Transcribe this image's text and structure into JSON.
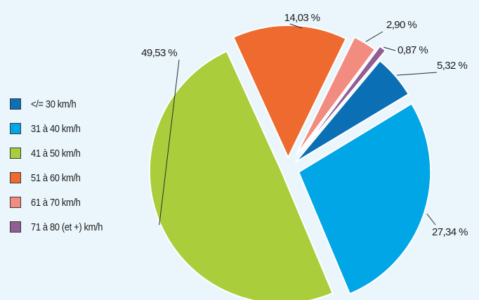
{
  "chart_data": {
    "type": "pie",
    "title": "",
    "categories": [
      "</= 30 km/h",
      "31 à 40 km/h",
      "41 à 50 km/h",
      "51 à 60 km/h",
      "61 à 70 km/h",
      "71 à 80 (et +) km/h"
    ],
    "values": [
      5.32,
      27.34,
      49.53,
      14.03,
      2.9,
      0.87
    ],
    "value_labels": [
      "5,32 %",
      "27,34 %",
      "49,53 %",
      "14,03 %",
      "2,90 %",
      "0,87 %"
    ],
    "colors": [
      "#0a6fb4",
      "#00a6e6",
      "#aacd3c",
      "#ef6a2e",
      "#f28c80",
      "#925d93"
    ],
    "exploded": true,
    "legend_position": "left"
  }
}
